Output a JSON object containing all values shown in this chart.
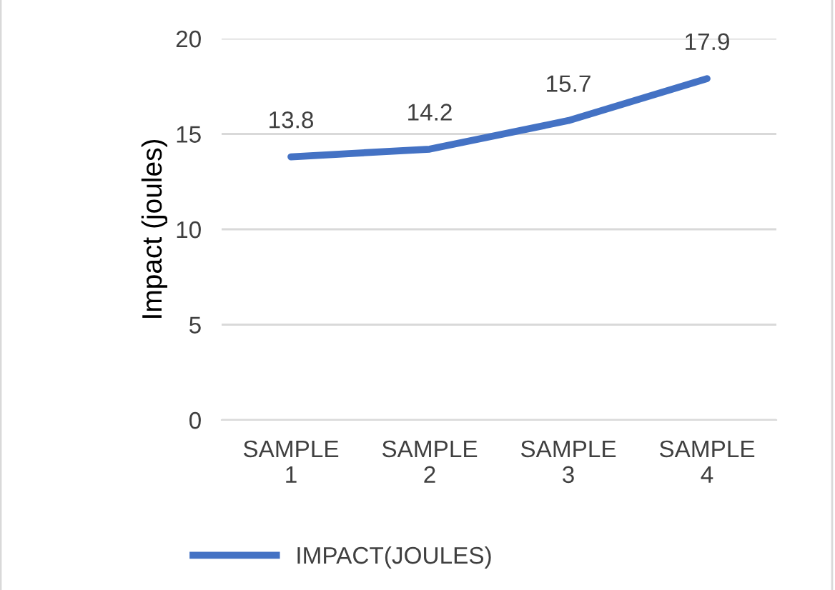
{
  "chart_data": {
    "type": "line",
    "ylabel": "Impact (joules)",
    "categories": [
      "SAMPLE 1",
      "SAMPLE 2",
      "SAMPLE 3",
      "SAMPLE 4"
    ],
    "series": [
      {
        "name": "IMPACT(JOULES)",
        "color": "#4472c4",
        "values": [
          13.8,
          14.2,
          15.7,
          17.9
        ]
      }
    ],
    "ylim": [
      0,
      20
    ],
    "yticks": [
      0,
      5,
      10,
      15,
      20
    ],
    "grid": "y",
    "legend": "bottom",
    "data_labels": true,
    "marker": "none",
    "line_style": "solid"
  }
}
